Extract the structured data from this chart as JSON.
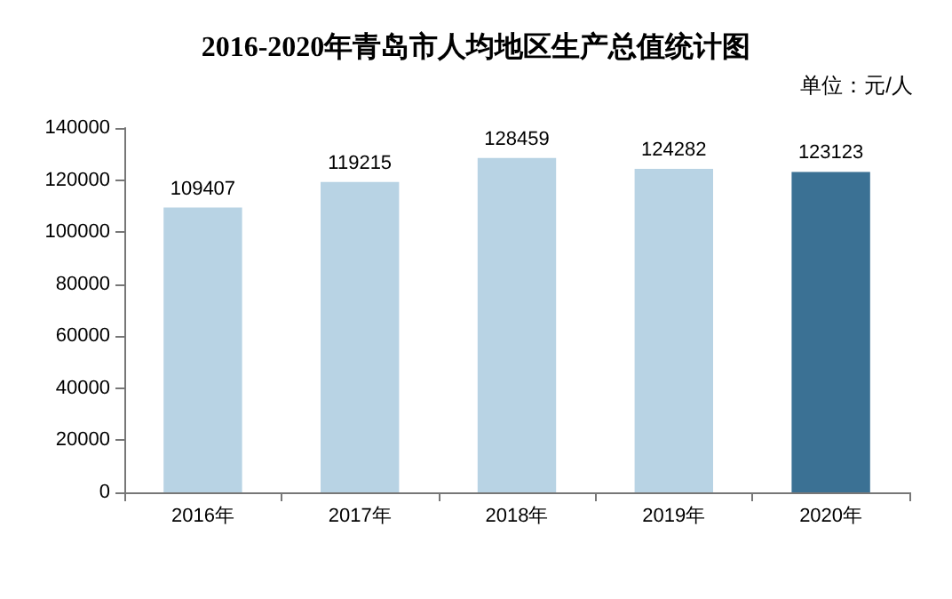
{
  "chart_data": {
    "type": "bar",
    "title": "2016-2020年青岛市人均地区生产总值统计图",
    "annotations": [
      "单位：元/人"
    ],
    "categories": [
      "2016年",
      "2017年",
      "2018年",
      "2019年",
      "2020年"
    ],
    "values": [
      109407,
      119215,
      128459,
      124282,
      123123
    ],
    "colors": [
      "#b8d3e4",
      "#b8d3e4",
      "#b8d3e4",
      "#b8d3e4",
      "#3b7194"
    ],
    "ylim": [
      0,
      140000
    ],
    "yticks": [
      0,
      20000,
      40000,
      60000,
      80000,
      100000,
      120000,
      140000
    ],
    "grid": false,
    "data_labels": true
  }
}
